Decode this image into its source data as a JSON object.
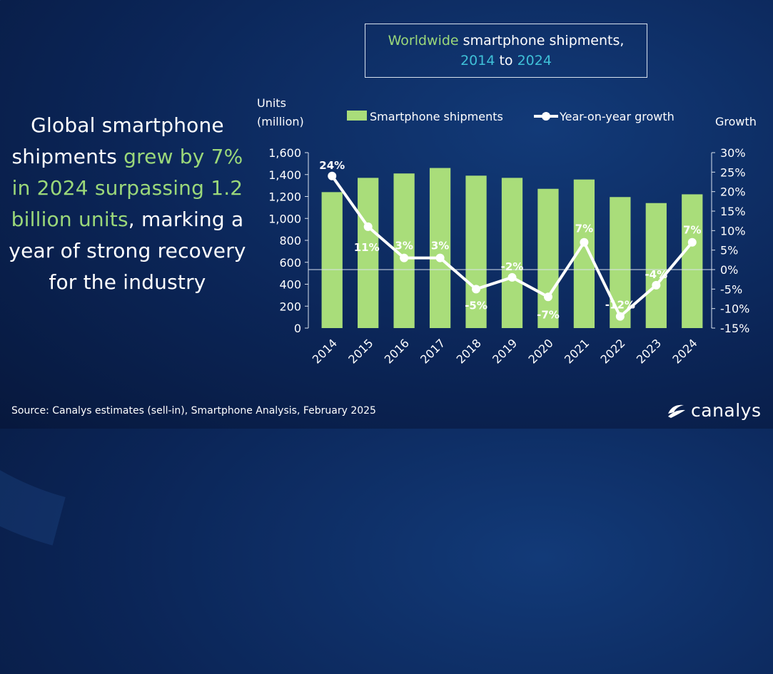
{
  "title": {
    "part1": "Worldwide",
    "part2": " smartphone shipments,",
    "part3": "2014",
    "part4": " to ",
    "part5": "2024"
  },
  "headline": {
    "t1": "Global smartphone shipments ",
    "t2": "grew by 7% in 2024 surpassing 1.2 billion units",
    "t3": ", marking a year of strong recovery for the industry"
  },
  "source": "Source: Canalys estimates (sell-in), Smartphone Analysis, February 2025",
  "logo_text": "canalys",
  "colors": {
    "bar": "#a9dd7a",
    "line": "#ffffff",
    "highlight": "#9bd87a",
    "teal": "#3fc0d8"
  },
  "chart_data": {
    "type": "bar",
    "categories": [
      "2014",
      "2015",
      "2016",
      "2017",
      "2018",
      "2019",
      "2020",
      "2021",
      "2022",
      "2023",
      "2024"
    ],
    "left_axis_label_line1": "Units",
    "left_axis_label_line2": "(million)",
    "right_axis_label": "Growth",
    "ylim_left": [
      0,
      1600
    ],
    "ylim_right": [
      -15,
      30
    ],
    "left_ticks": [
      "0",
      "200",
      "400",
      "600",
      "800",
      "1,000",
      "1,200",
      "1,400",
      "1,600"
    ],
    "left_tick_values": [
      0,
      200,
      400,
      600,
      800,
      1000,
      1200,
      1400,
      1600
    ],
    "right_ticks": [
      "-15%",
      "-10%",
      "-5%",
      "0%",
      "5%",
      "10%",
      "15%",
      "20%",
      "25%",
      "30%"
    ],
    "right_tick_values": [
      -15,
      -10,
      -5,
      0,
      5,
      10,
      15,
      20,
      25,
      30
    ],
    "legend_placement": "top",
    "series": [
      {
        "name": "Smartphone shipments",
        "kind": "bar",
        "axis": "left",
        "values": [
          1240,
          1370,
          1410,
          1460,
          1390,
          1370,
          1270,
          1355,
          1195,
          1140,
          1220
        ]
      },
      {
        "name": "Year-on-year growth",
        "kind": "line",
        "axis": "right",
        "values": [
          24,
          11,
          3,
          3,
          -5,
          -2,
          -7,
          7,
          -12,
          -4,
          7
        ],
        "labels": [
          "24%",
          "11%",
          "3%",
          "3%",
          "-5%",
          "-2%",
          "-7%",
          "7%",
          "-12%",
          "-4%",
          "7%"
        ]
      }
    ]
  }
}
